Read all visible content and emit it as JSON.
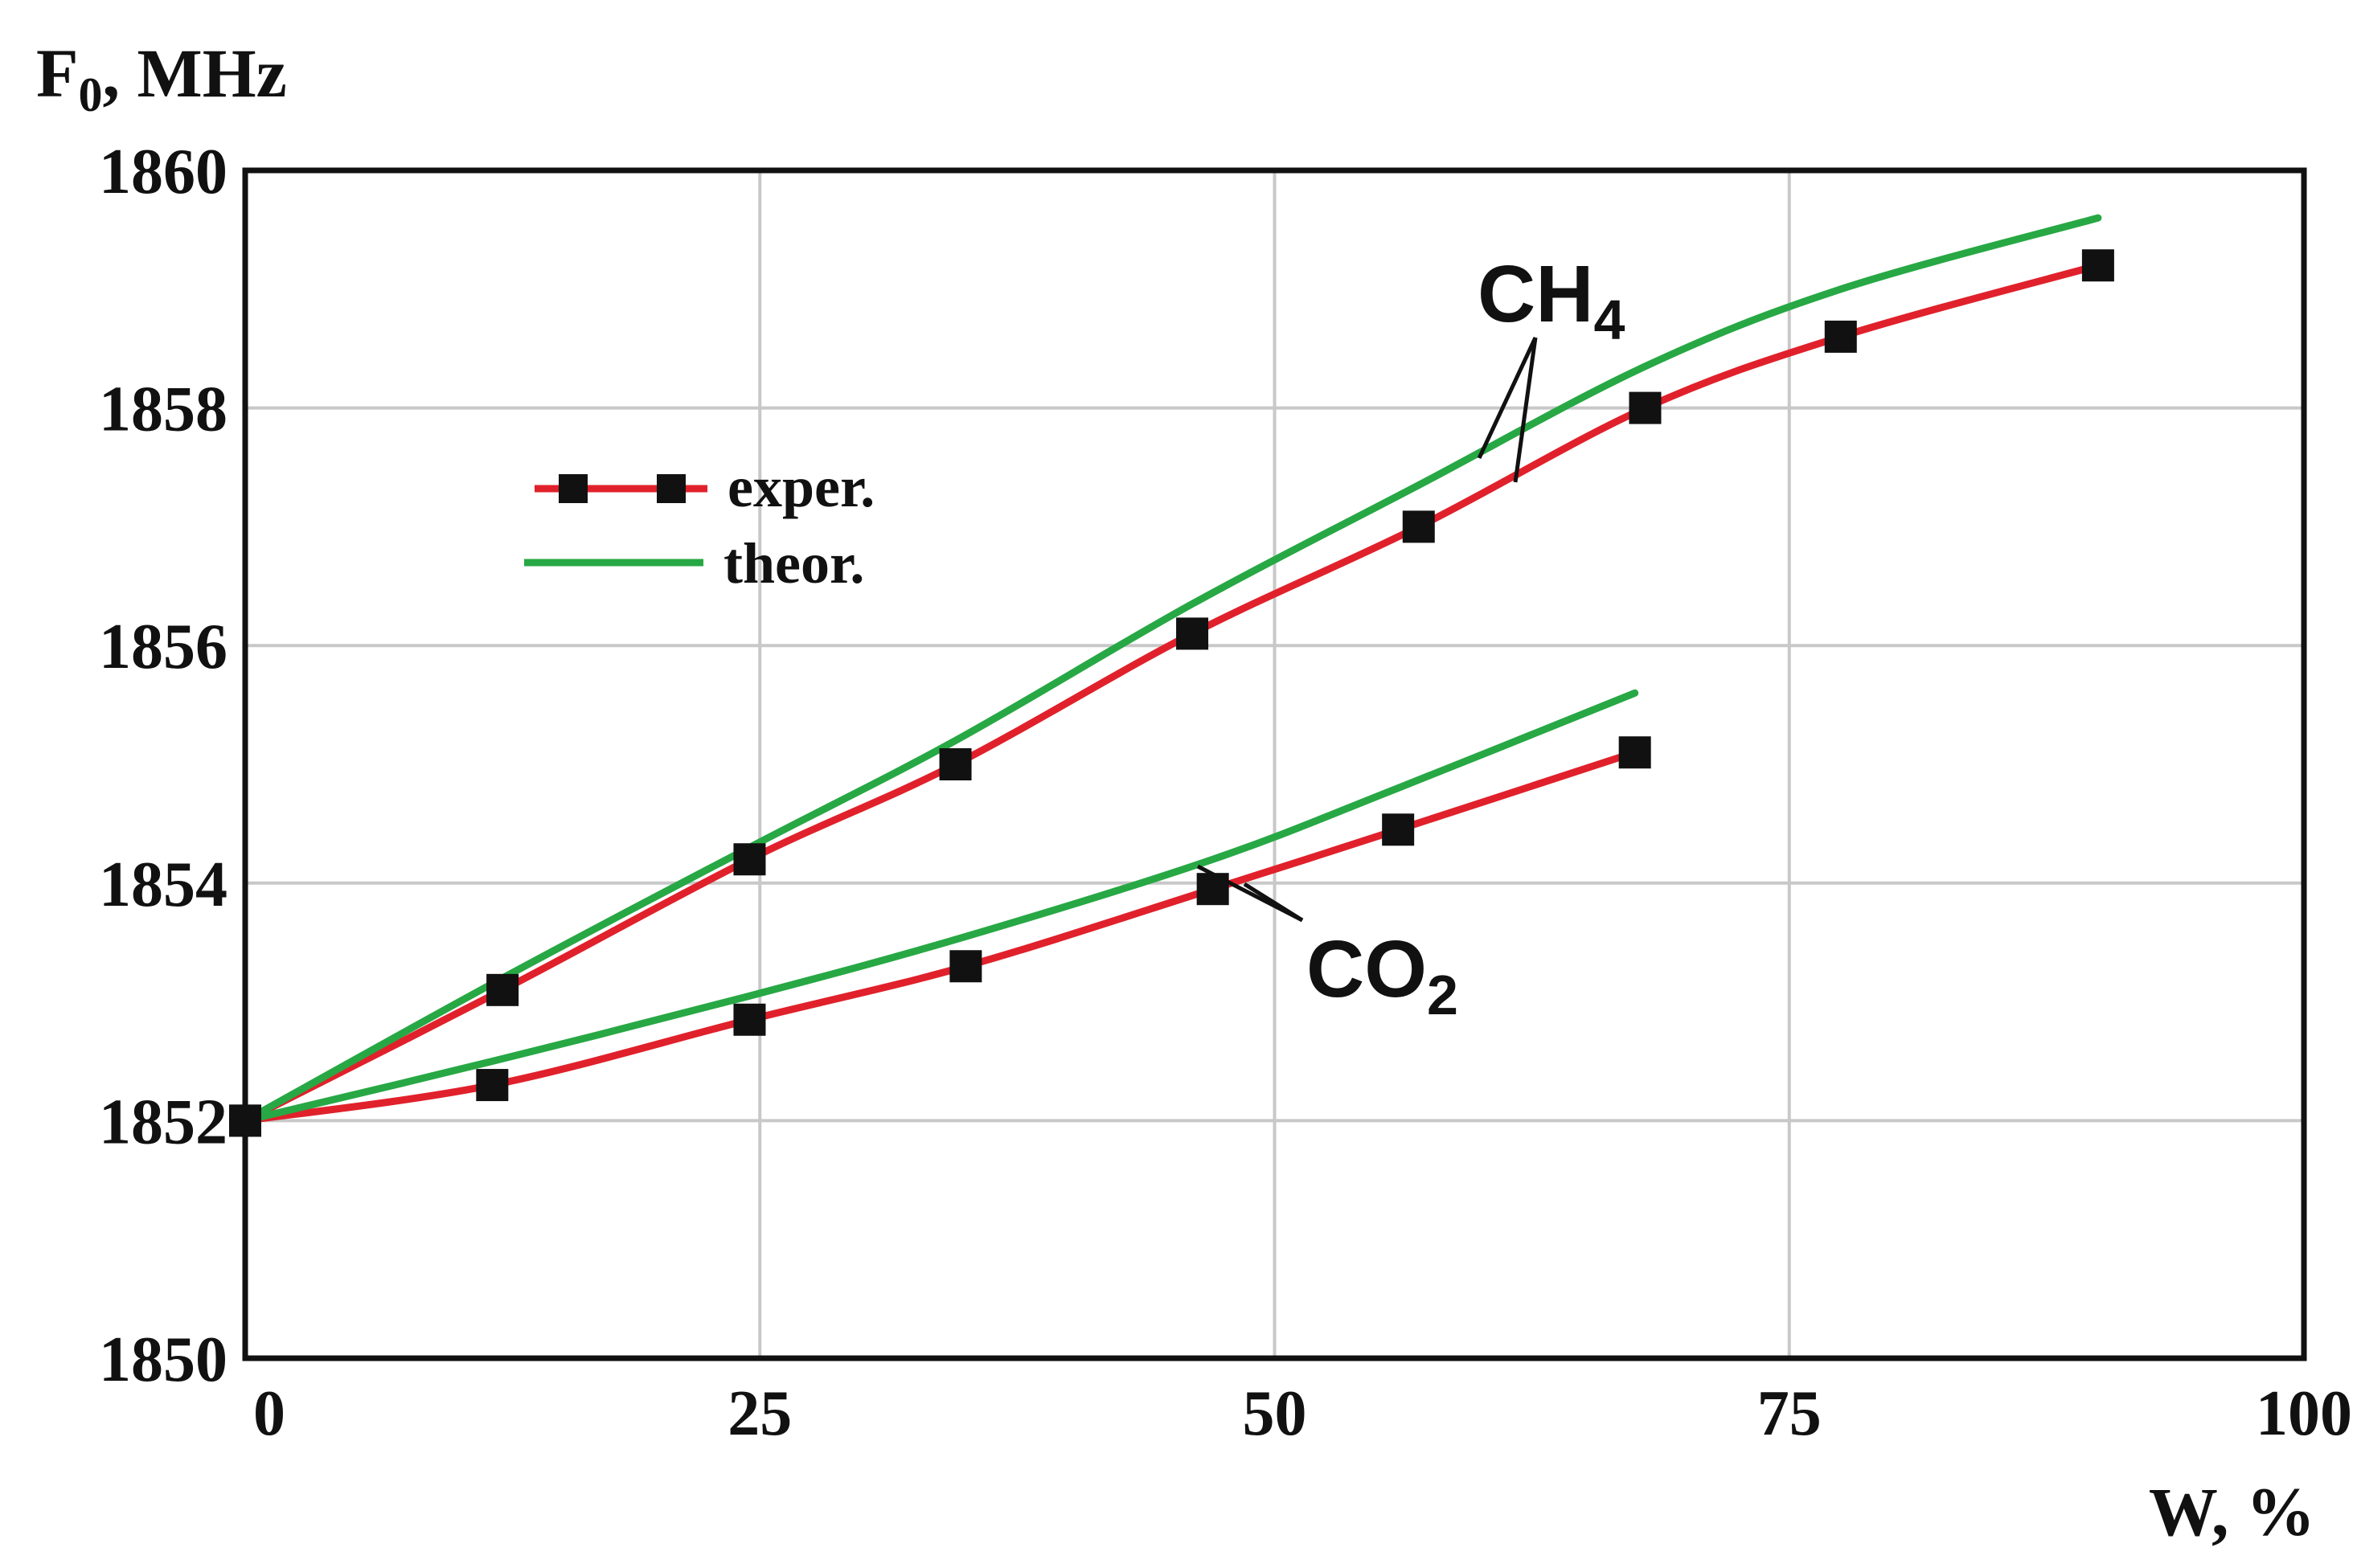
{
  "chart_data": {
    "type": "line",
    "xlabel": "W, %",
    "ylabel": {
      "main": "F",
      "sub": "0",
      "rest": ", MHz"
    },
    "xlim": [
      0,
      100
    ],
    "ylim": [
      1850,
      1860
    ],
    "x_ticks": [
      0,
      25,
      50,
      75,
      100
    ],
    "y_ticks": [
      1850,
      1852,
      1854,
      1856,
      1858,
      1860
    ],
    "grid": true,
    "legend": {
      "placement": "upper-left",
      "entries": [
        {
          "label": "exper.",
          "color": "#e0212b",
          "marker": "square"
        },
        {
          "label": "theor.",
          "color": "#27a844",
          "marker": "none"
        }
      ]
    },
    "annotations": [
      {
        "label": "CH",
        "sub": "4"
      },
      {
        "label": "CO",
        "sub": "2"
      }
    ],
    "series": [
      {
        "group": "CH4",
        "kind": "exper.",
        "color": "#e0212b",
        "markers": true,
        "x": [
          0,
          12.5,
          24.5,
          34.5,
          46,
          57,
          68,
          77.5,
          90
        ],
        "y": [
          1852.0,
          1853.1,
          1854.2,
          1855.0,
          1856.1,
          1857.0,
          1858.0,
          1858.6,
          1859.2
        ]
      },
      {
        "group": "CH4",
        "kind": "theor.",
        "color": "#27a844",
        "markers": false,
        "x": [
          0,
          12.5,
          24.5,
          34.5,
          46,
          57,
          68,
          77.5,
          90
        ],
        "y": [
          1852.0,
          1853.2,
          1854.3,
          1855.2,
          1856.35,
          1857.35,
          1858.35,
          1859.0,
          1859.6
        ]
      },
      {
        "group": "CO2",
        "kind": "exper.",
        "color": "#e0212b",
        "markers": true,
        "x": [
          0,
          12,
          24.5,
          35,
          47,
          56,
          67.5
        ],
        "y": [
          1852.0,
          1852.3,
          1852.85,
          1853.3,
          1853.95,
          1854.45,
          1855.1
        ]
      },
      {
        "group": "CO2",
        "kind": "theor.",
        "color": "#27a844",
        "markers": false,
        "x": [
          0,
          12,
          24.5,
          35,
          47,
          56,
          67.5
        ],
        "y": [
          1852.0,
          1852.5,
          1853.05,
          1853.55,
          1854.2,
          1854.8,
          1855.6
        ]
      }
    ]
  }
}
